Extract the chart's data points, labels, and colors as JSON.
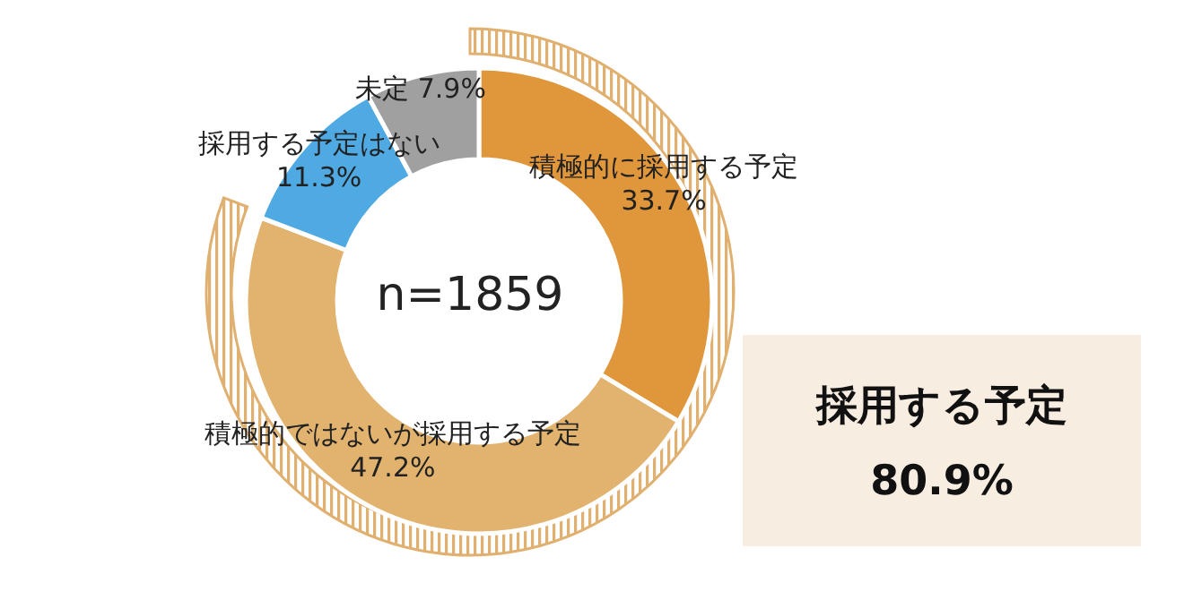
{
  "chart_data": {
    "type": "donut",
    "categories": [
      "積極的に採用する予定",
      "積極的ではないが採用する予定",
      "採用する予定はない",
      "未定"
    ],
    "values": [
      33.7,
      47.2,
      11.3,
      7.9
    ],
    "colors": [
      "#e0963a",
      "#e2b36e",
      "#4fa9e2",
      "#a0a0a0"
    ],
    "value_labels": [
      "33.7%",
      "47.2%",
      "11.3%",
      "7.9%"
    ],
    "annotations": [
      "n=1859",
      "採用する予定",
      "80.9%"
    ]
  }
}
